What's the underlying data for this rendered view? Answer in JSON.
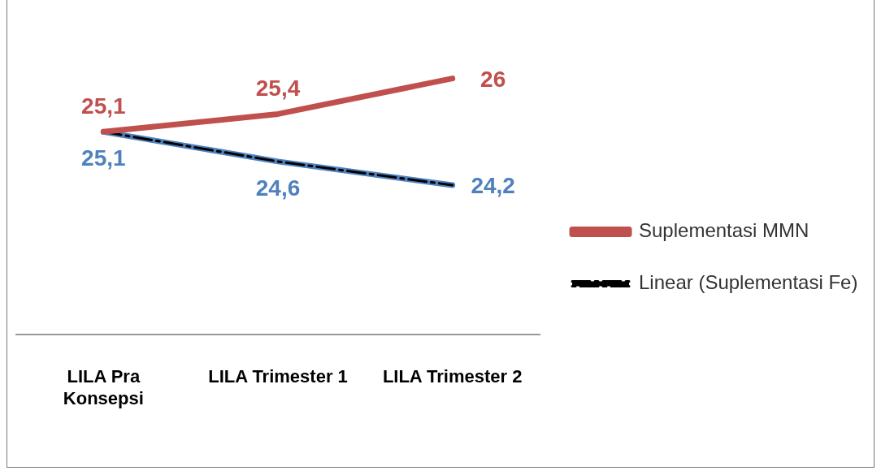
{
  "chart_data": {
    "type": "line",
    "categories": [
      "LILA Pra Konsepsi",
      "LILA Trimester 1",
      "LILA Trimester 2"
    ],
    "series": [
      {
        "name": "Suplementasi MMN",
        "color": "#c0504d",
        "values": [
          25.1,
          25.4,
          26
        ],
        "value_labels": [
          "25,1",
          "25,4",
          "26"
        ]
      },
      {
        "name": "Linear (Suplementasi Fe)",
        "type": "line",
        "x": [
          "LILA Pra Konsepsi",
          "LILA Trimester 1",
          "LILA Trimester 2"
        ],
        "color": "#000000",
        "values": [
          25.1,
          24.6,
          24.2
        ],
        "line_style": "dashed"
      },
      {
        "color": "#4f81bd",
        "values": [
          25.1,
          24.6,
          24.2
        ],
        "value_labels": [
          "25,1",
          "24,6",
          "24,2"
        ]
      }
    ],
    "legend": "right",
    "grid": false,
    "tick_labels": "x",
    "marker": "none"
  }
}
